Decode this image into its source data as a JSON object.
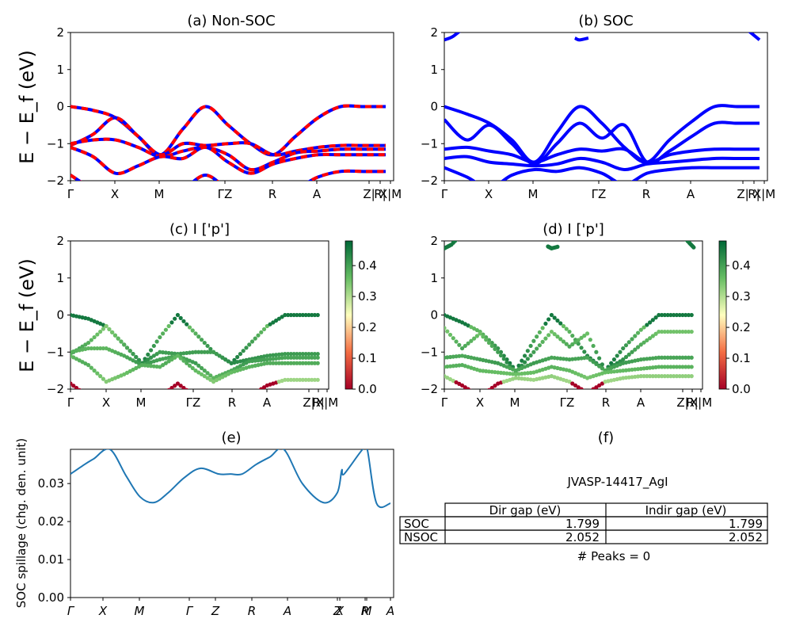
{
  "chart_data": [
    {
      "panel": "a",
      "type": "line",
      "title": "(a) Non-SOC",
      "ylabel": "E − E_f (eV)",
      "ylim": [
        -2,
        2
      ],
      "yticks": [
        "2",
        "1",
        "0",
        "−1",
        "−2"
      ],
      "xtick_labels": [
        "Γ",
        "X",
        "M",
        "ΓZ",
        "R",
        "A",
        "Z|",
        "R|",
        "X|M"
      ],
      "series": [
        {
          "x": [
            0,
            0.5,
            1,
            1.5,
            2,
            2.5,
            3,
            3.5,
            4,
            4.5,
            5,
            5.5,
            6,
            6.5,
            7
          ],
          "values": [
            0,
            -0.1,
            -0.3,
            -0.8,
            -1.3,
            -0.6,
            0,
            -0.5,
            -1.0,
            -1.3,
            -0.8,
            -0.3,
            0,
            0,
            0
          ]
        },
        {
          "x": [
            0,
            0.5,
            1,
            1.5,
            2,
            2.5,
            3,
            3.5,
            4,
            4.5,
            5,
            5.5,
            6,
            6.5,
            7
          ],
          "values": [
            -1.05,
            -0.75,
            -0.3,
            -0.8,
            -1.3,
            -1.0,
            -1.05,
            -1.0,
            -1.0,
            -1.3,
            -1.2,
            -1.1,
            -1.05,
            -1.05,
            -1.05
          ]
        },
        {
          "x": [
            0,
            0.5,
            1,
            1.5,
            2,
            2.5,
            3,
            3.5,
            4,
            4.5,
            5,
            5.5,
            6,
            6.5,
            7
          ],
          "values": [
            -1.0,
            -0.9,
            -0.9,
            -1.1,
            -1.35,
            -1.2,
            -1.1,
            -1.3,
            -1.7,
            -1.5,
            -1.25,
            -1.2,
            -1.15,
            -1.15,
            -1.15
          ]
        },
        {
          "x": [
            0,
            0.5,
            1,
            1.5,
            2,
            2.5,
            3,
            3.5,
            4,
            4.5,
            5,
            5.5,
            6,
            6.5,
            7
          ],
          "values": [
            -1.1,
            -1.35,
            -1.8,
            -1.6,
            -1.35,
            -1.4,
            -1.1,
            -1.5,
            -1.8,
            -1.55,
            -1.4,
            -1.3,
            -1.3,
            -1.3,
            -1.3
          ]
        },
        {
          "x": [
            0,
            0.5,
            1,
            1.5,
            2,
            2.5,
            3,
            3.5,
            4,
            4.5,
            5,
            5.5,
            6,
            6.5,
            7
          ],
          "values": [
            -1.85,
            -2.2,
            -2.2,
            -2.2,
            -2.2,
            -2.2,
            -1.85,
            -2.2,
            -2.2,
            -2.2,
            -2.2,
            -1.9,
            -1.75,
            -1.75,
            -1.75
          ]
        }
      ]
    },
    {
      "panel": "b",
      "type": "line",
      "title": "(b) SOC",
      "ylim": [
        -2,
        2
      ],
      "yticks": [
        "2",
        "1",
        "0",
        "−1",
        "−2"
      ],
      "xtick_labels": [
        "Γ",
        "X",
        "M",
        "ΓZ",
        "R",
        "A",
        "Z|",
        "R|",
        "X|M"
      ],
      "series": [
        {
          "x": [
            0,
            0.5,
            1,
            1.5,
            2,
            2.5,
            3,
            3.5,
            4,
            4.5,
            5,
            5.5,
            6,
            6.5,
            7
          ],
          "values": [
            0,
            -0.2,
            -0.45,
            -0.9,
            -1.5,
            -0.7,
            0,
            -0.45,
            -1.1,
            -1.5,
            -0.9,
            -0.4,
            0,
            0,
            0
          ]
        },
        {
          "x": [
            0,
            0.5,
            1,
            1.5,
            2,
            2.5,
            3,
            3.5,
            4,
            4.5,
            5,
            5.5,
            6,
            6.5,
            7
          ],
          "values": [
            -0.35,
            -0.9,
            -0.5,
            -1.0,
            -1.55,
            -1.0,
            -0.45,
            -0.85,
            -0.5,
            -1.5,
            -1.2,
            -0.8,
            -0.45,
            -0.45,
            -0.45
          ]
        },
        {
          "x": [
            0,
            0.5,
            1,
            1.5,
            2,
            2.5,
            3,
            3.5,
            4,
            4.5,
            5,
            5.5,
            6,
            6.5,
            7
          ],
          "values": [
            -1.15,
            -1.1,
            -1.2,
            -1.3,
            -1.5,
            -1.3,
            -1.15,
            -1.2,
            -1.15,
            -1.5,
            -1.3,
            -1.2,
            -1.15,
            -1.15,
            -1.15
          ]
        },
        {
          "x": [
            0,
            0.5,
            1,
            1.5,
            2,
            2.5,
            3,
            3.5,
            4,
            4.5,
            5,
            5.5,
            6,
            6.5,
            7
          ],
          "values": [
            -1.4,
            -1.35,
            -1.5,
            -1.55,
            -1.6,
            -1.55,
            -1.4,
            -1.5,
            -1.7,
            -1.55,
            -1.5,
            -1.45,
            -1.4,
            -1.4,
            -1.4
          ]
        },
        {
          "x": [
            0,
            0.5,
            1,
            1.5,
            2,
            2.5,
            3,
            3.5,
            4,
            4.5,
            5,
            5.5,
            6,
            6.5,
            7
          ],
          "values": [
            -1.65,
            -1.9,
            -2.2,
            -1.85,
            -1.7,
            -1.75,
            -1.65,
            -1.8,
            -2.1,
            -1.8,
            -1.7,
            -1.65,
            -1.65,
            -1.65,
            -1.65
          ]
        },
        {
          "x": [
            0,
            0.2,
            0.5
          ],
          "values": [
            1.8,
            1.9,
            2.2
          ]
        },
        {
          "x": [
            2.9,
            3.0,
            3.2
          ],
          "values": [
            1.85,
            1.8,
            1.85
          ]
        },
        {
          "x": [
            6.6,
            6.85,
            7
          ],
          "values": [
            2.2,
            1.95,
            1.8
          ]
        }
      ]
    },
    {
      "panel": "c",
      "type": "scatter",
      "title": "(c)  I ['p']",
      "ylabel": "E − E_f (eV)",
      "ylim": [
        -2,
        2
      ],
      "yticks": [
        "2",
        "1",
        "0",
        "−1",
        "−2"
      ],
      "xtick_labels": [
        "Γ",
        "X",
        "M",
        "ΓZ",
        "R",
        "A",
        "Z|",
        "R|",
        "X|M"
      ],
      "colorbar": {
        "min": 0.0,
        "max": 0.48,
        "ticks": [
          "0.4",
          "0.3",
          "0.2",
          "0.1",
          "0.0"
        ],
        "colormap": "RdYlGn"
      }
    },
    {
      "panel": "d",
      "type": "scatter",
      "title": "(d) I ['p']",
      "ylim": [
        -2,
        2
      ],
      "yticks": [
        "2",
        "1",
        "0",
        "−1",
        "−2"
      ],
      "xtick_labels": [
        "Γ",
        "X",
        "M",
        "ΓZ",
        "R",
        "A",
        "Z|",
        "R|",
        "X|M"
      ],
      "colorbar": {
        "min": 0.0,
        "max": 0.48,
        "ticks": [
          "0.4",
          "0.3",
          "0.2",
          "0.1",
          "0.0"
        ],
        "colormap": "RdYlGn"
      }
    },
    {
      "panel": "e",
      "type": "line",
      "title": "(e)",
      "ylabel": "SOC spillage (chg. den. unit)",
      "ylim": [
        0,
        0.039
      ],
      "yticks": [
        "0.00",
        "0.01",
        "0.02",
        "0.03"
      ],
      "xtick_labels": [
        "Γ",
        "X",
        "M",
        "Γ",
        "Z",
        "R",
        "A",
        "Z",
        "X",
        "R",
        "M",
        "A"
      ],
      "x": [
        0,
        0.3,
        0.5,
        0.85,
        1.2,
        1.5,
        1.8,
        2.1,
        2.45,
        2.8,
        3.2,
        3.45,
        3.7,
        4.0,
        4.3,
        4.6,
        5.0,
        5.45,
        5.75,
        5.85,
        5.9,
        6.3,
        6.4,
        6.6,
        6.9
      ],
      "values": [
        0.0325,
        0.035,
        0.0365,
        0.039,
        0.032,
        0.0265,
        0.025,
        0.0275,
        0.0315,
        0.034,
        0.0325,
        0.0325,
        0.0325,
        0.035,
        0.037,
        0.039,
        0.03,
        0.025,
        0.0275,
        0.0335,
        0.0325,
        0.039,
        0.039,
        0.0248,
        0.0248
      ]
    }
  ],
  "summary_panel": {
    "title": "(f)",
    "material": "JVASP-14417_AgI",
    "headers": [
      "Dir gap (eV)",
      "Indir gap (eV)"
    ],
    "rows": [
      {
        "label": "SOC",
        "dir": "1.799",
        "indir": "1.799"
      },
      {
        "label": "NSOC",
        "dir": "2.052",
        "indir": "2.052"
      }
    ],
    "peaks": "# Peaks = 0"
  },
  "colors": {
    "band_blue": "#0000ff",
    "band_red": "#ff0000",
    "spillage_line": "#1f77b4"
  }
}
